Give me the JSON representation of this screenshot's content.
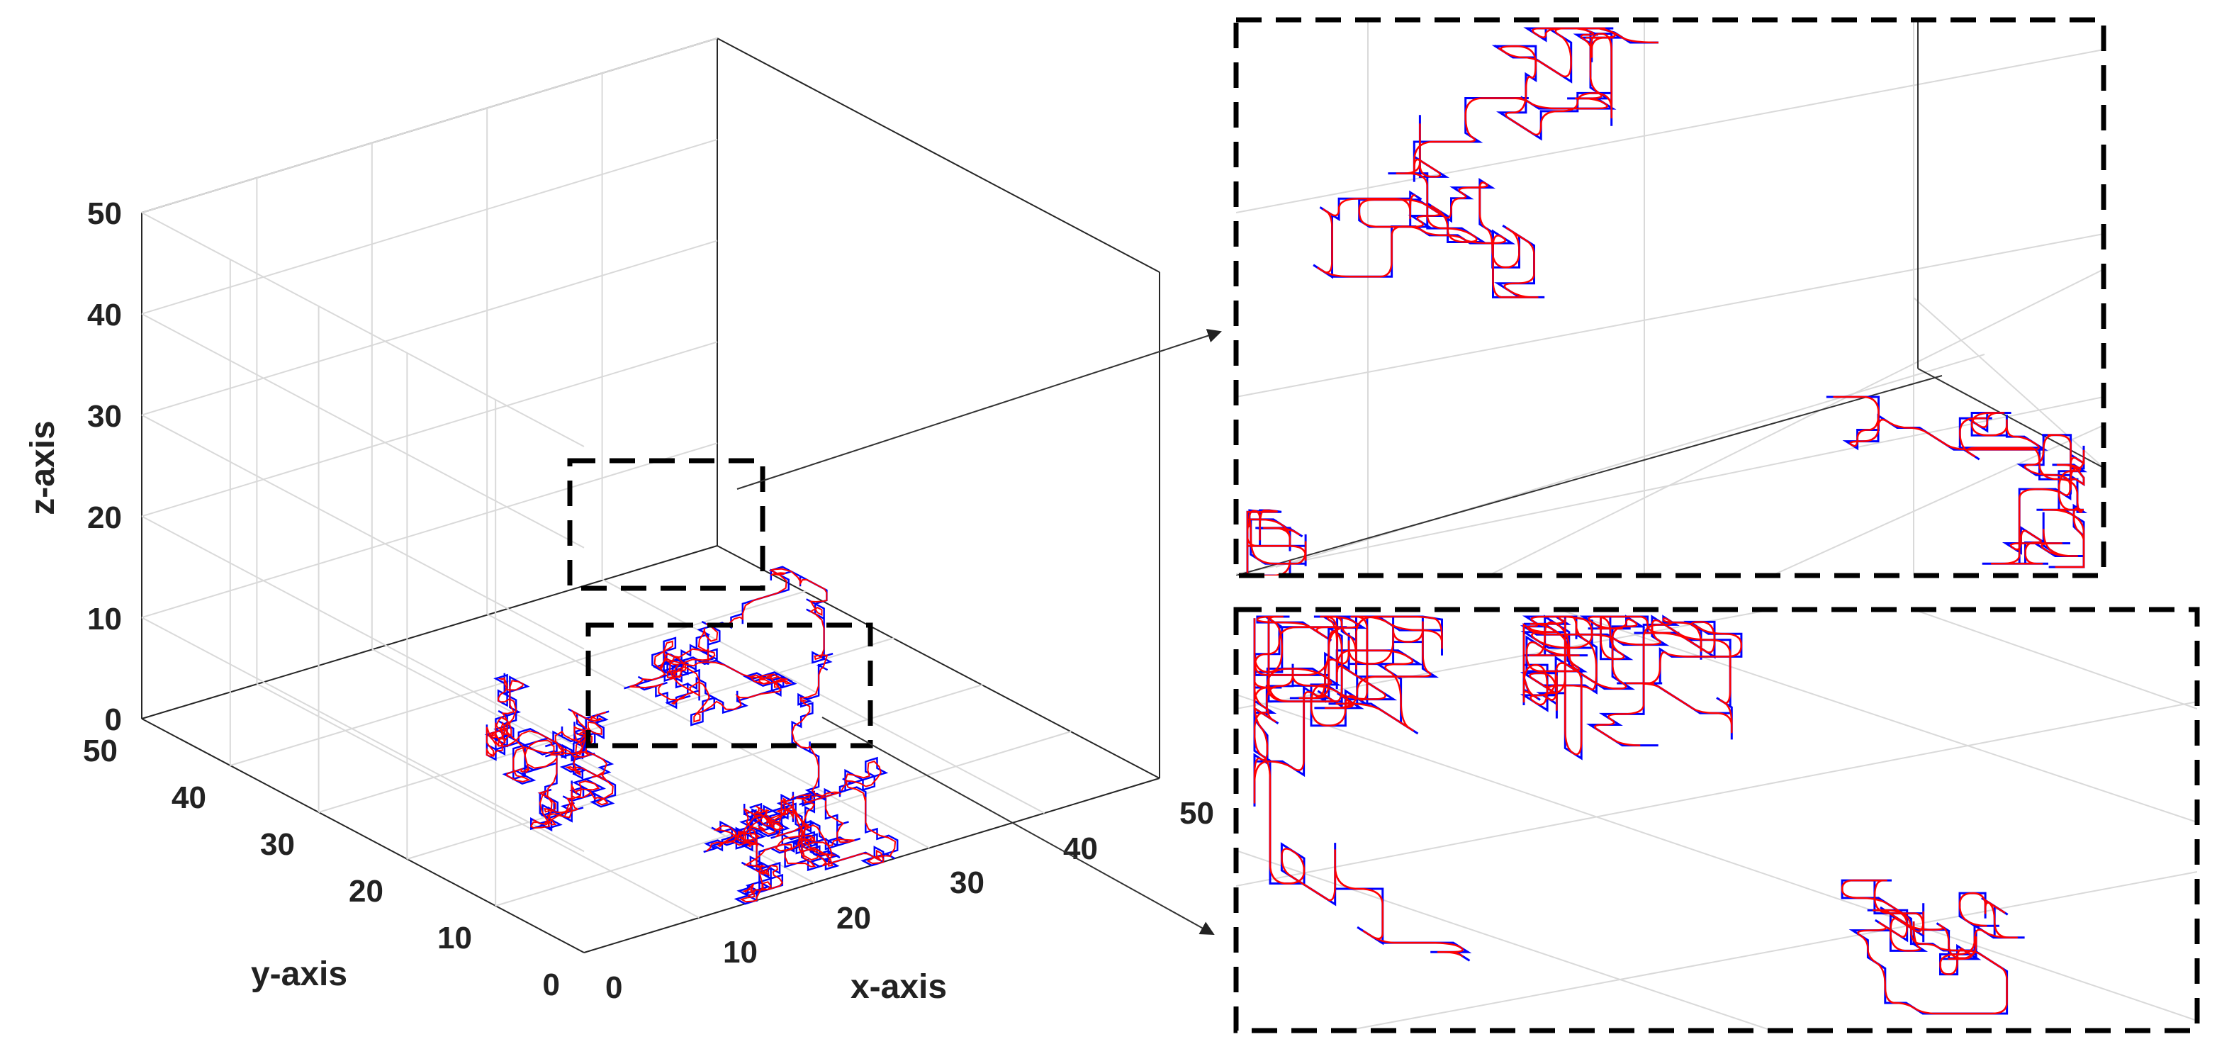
{
  "colors": {
    "blue_path": "#0000ff",
    "red_path": "#ff0000",
    "grid": "#d9d9d9",
    "axis": "#262626",
    "box": "#000000"
  },
  "chart_data": {
    "type": "3d-line",
    "title": "",
    "xlabel": "x-axis",
    "ylabel": "y-axis",
    "zlabel": "z-axis",
    "xlim": [
      0,
      50
    ],
    "ylim": [
      0,
      50
    ],
    "zlim": [
      0,
      50
    ],
    "xticks": [
      "0",
      "10",
      "20",
      "30",
      "40",
      "50"
    ],
    "yticks": [
      "0",
      "10",
      "20",
      "30",
      "40",
      "50"
    ],
    "zticks": [
      "0",
      "10",
      "20",
      "30",
      "40",
      "50"
    ],
    "grid": true,
    "series": [
      {
        "color": "#0000ff",
        "style": "piecewise-linear random walk"
      },
      {
        "color": "#ff0000",
        "style": "smoothed random walk"
      }
    ],
    "zoom_insets": [
      {
        "position": "upper"
      },
      {
        "position": "lower"
      }
    ]
  }
}
